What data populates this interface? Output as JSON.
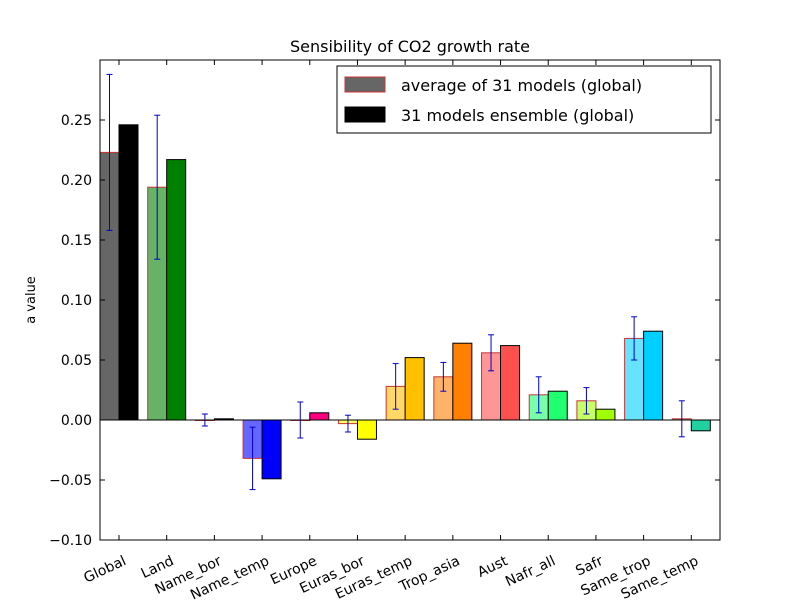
{
  "chart_data": {
    "type": "bar",
    "title": "Sensibility of CO2 growth rate",
    "xlabel": "",
    "ylabel": "a value",
    "ylim": [
      -0.1,
      0.3
    ],
    "yticks": [
      -0.1,
      -0.05,
      0.0,
      0.05,
      0.1,
      0.15,
      0.2,
      0.25
    ],
    "ytick_labels": [
      "−0.10",
      "−0.05",
      "0.00",
      "0.05",
      "0.10",
      "0.15",
      "0.20",
      "0.25"
    ],
    "grid": false,
    "legend_position": "top-right",
    "categories": [
      "Global",
      "Land",
      "Name_bor",
      "Name_temp",
      "Europe",
      "Euras_bor",
      "Euras_temp",
      "Trop_asia",
      "Aust",
      "Nafr_all",
      "Safr",
      "Same_trop",
      "Same_temp"
    ],
    "colors": [
      "#000000",
      "#008000",
      "#000000",
      "#0000ff",
      "#ff0080",
      "#ffff00",
      "#ffc000",
      "#ff8000",
      "#ff5050",
      "#20ff70",
      "#a0ff00",
      "#00d0ff",
      "#20d0a0"
    ],
    "series": [
      {
        "name": "average of 31 models (global)",
        "values": [
          0.223,
          0.194,
          0.0,
          -0.032,
          0.0,
          -0.003,
          0.028,
          0.036,
          0.056,
          0.021,
          0.016,
          0.068,
          0.001
        ],
        "errors": [
          0.065,
          0.06,
          0.005,
          0.026,
          0.015,
          0.007,
          0.019,
          0.012,
          0.015,
          0.015,
          0.011,
          0.018,
          0.015
        ],
        "alpha": 0.6,
        "legend_fill": "#666666",
        "legend_edge": "#cc3333"
      },
      {
        "name": "31 models ensemble (global)",
        "values": [
          0.246,
          0.217,
          0.001,
          -0.049,
          0.006,
          -0.016,
          0.052,
          0.064,
          0.062,
          0.024,
          0.009,
          0.074,
          -0.009
        ],
        "legend_fill": "#000000",
        "legend_edge": "#000000"
      }
    ]
  }
}
